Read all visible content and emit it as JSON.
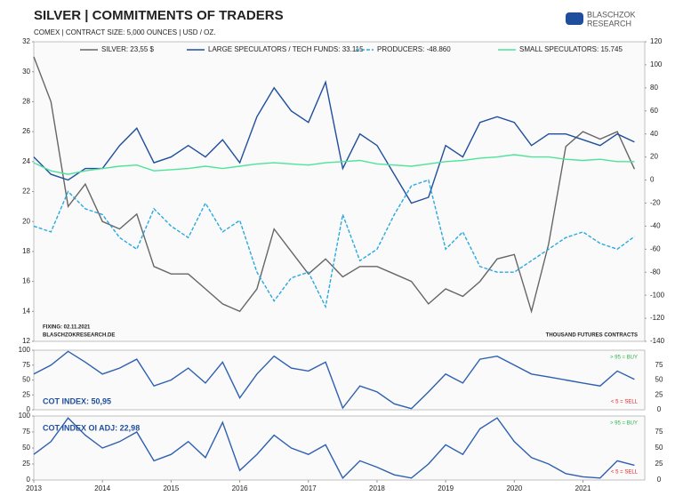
{
  "header": {
    "title": "SILVER | COMMITMENTS OF TRADERS",
    "subtitle": "COMEX | CONTRACT SIZE: 5,000 OUNCES | USD / OZ.",
    "logo": "BLASCHZOK",
    "logo_sub": "RESEARCH"
  },
  "chart_data": [
    {
      "type": "line",
      "x": [
        2013,
        2013.25,
        2013.5,
        2013.75,
        2014,
        2014.25,
        2014.5,
        2014.75,
        2015,
        2015.25,
        2015.5,
        2015.75,
        2016,
        2016.25,
        2016.5,
        2016.75,
        2017,
        2017.25,
        2017.5,
        2017.75,
        2018,
        2018.25,
        2018.5,
        2018.75,
        2019,
        2019.25,
        2019.5,
        2019.75,
        2020,
        2020.25,
        2020.5,
        2020.75,
        2021,
        2021.25,
        2021.5,
        2021.75
      ],
      "xlim": [
        2013,
        2021.9
      ],
      "ylim": [
        12,
        32
      ],
      "yticks": [
        12,
        14,
        16,
        18,
        20,
        22,
        24,
        26,
        28,
        30,
        32
      ],
      "y2lim": [
        -140,
        120
      ],
      "y2ticks": [
        -140,
        -120,
        -100,
        -80,
        -60,
        -40,
        -20,
        0,
        20,
        40,
        60,
        80,
        100,
        120
      ],
      "series": [
        {
          "name": "SILVER: 23,55 $",
          "color": "#666666",
          "values": [
            31,
            28,
            21,
            22.5,
            20,
            19.5,
            20.5,
            17,
            16.5,
            16.5,
            15.5,
            14.5,
            14,
            15.5,
            19.5,
            18,
            16.5,
            17.5,
            16.3,
            17,
            17,
            16.5,
            16,
            14.5,
            15.5,
            15,
            16,
            17.5,
            17.8,
            14,
            18.5,
            25,
            26,
            25.5,
            26,
            23.5
          ]
        },
        {
          "name": "LARGE SPECULATORS / TECH FUNDS: 33.115",
          "color": "#1f4e9c",
          "axis": "y2",
          "values": [
            20,
            5,
            0,
            10,
            10,
            30,
            45,
            15,
            20,
            30,
            20,
            35,
            15,
            55,
            80,
            60,
            50,
            85,
            10,
            40,
            30,
            5,
            -20,
            -15,
            30,
            20,
            50,
            55,
            50,
            30,
            40,
            40,
            35,
            30,
            40,
            33
          ]
        },
        {
          "name": "PRODUCERS: -48.860",
          "color": "#29a9e0",
          "axis": "y2",
          "style": "dashed",
          "values": [
            -40,
            -45,
            -10,
            -25,
            -30,
            -50,
            -60,
            -25,
            -40,
            -50,
            -20,
            -45,
            -35,
            -80,
            -105,
            -85,
            -80,
            -110,
            -30,
            -70,
            -60,
            -30,
            -5,
            0,
            -60,
            -45,
            -75,
            -80,
            -80,
            -70,
            -60,
            -50,
            -45,
            -55,
            -60,
            -49
          ]
        },
        {
          "name": "SMALL SPECULATORS: 15.745",
          "color": "#4ee39a",
          "axis": "y2",
          "values": [
            15,
            8,
            5,
            8,
            10,
            12,
            13,
            8,
            9,
            10,
            12,
            10,
            12,
            14,
            15,
            14,
            13,
            15,
            16,
            17,
            14,
            13,
            12,
            14,
            16,
            17,
            19,
            20,
            22,
            20,
            20,
            18,
            17,
            18,
            16,
            16
          ]
        }
      ],
      "annotations": [
        "FIXING: 02.11.2021",
        "BLASCHZOKRESEARCH.DE",
        "THOUSAND FUTURES CONTRACTS"
      ]
    },
    {
      "type": "line",
      "x": [
        2013,
        2013.25,
        2013.5,
        2013.75,
        2014,
        2014.25,
        2014.5,
        2014.75,
        2015,
        2015.25,
        2015.5,
        2015.75,
        2016,
        2016.25,
        2016.5,
        2016.75,
        2017,
        2017.25,
        2017.5,
        2017.75,
        2018,
        2018.25,
        2018.5,
        2018.75,
        2019,
        2019.25,
        2019.5,
        2019.75,
        2020,
        2020.25,
        2020.5,
        2020.75,
        2021,
        2021.25,
        2021.5,
        2021.75
      ],
      "xlim": [
        2013,
        2021.9
      ],
      "ylim": [
        0,
        100
      ],
      "yticks": [
        0,
        25,
        50,
        75,
        100
      ],
      "title": "COT INDEX: 50,95",
      "series": [
        {
          "color": "#2e5fb0",
          "values": [
            60,
            75,
            98,
            80,
            60,
            70,
            85,
            40,
            50,
            70,
            45,
            80,
            20,
            60,
            90,
            70,
            65,
            80,
            3,
            40,
            30,
            10,
            2,
            30,
            60,
            45,
            85,
            90,
            75,
            60,
            55,
            50,
            45,
            40,
            65,
            51
          ]
        }
      ],
      "annotations": [
        "> 95 = BUY",
        "< 5 = SELL"
      ]
    },
    {
      "type": "line",
      "x": [
        2013,
        2013.25,
        2013.5,
        2013.75,
        2014,
        2014.25,
        2014.5,
        2014.75,
        2015,
        2015.25,
        2015.5,
        2015.75,
        2016,
        2016.25,
        2016.5,
        2016.75,
        2017,
        2017.25,
        2017.5,
        2017.75,
        2018,
        2018.25,
        2018.5,
        2018.75,
        2019,
        2019.25,
        2019.5,
        2019.75,
        2020,
        2020.25,
        2020.5,
        2020.75,
        2021,
        2021.25,
        2021.5,
        2021.75
      ],
      "xlim": [
        2013,
        2021.9
      ],
      "xticks": [
        2013,
        2014,
        2015,
        2016,
        2017,
        2018,
        2019,
        2020,
        2021
      ],
      "ylim": [
        0,
        100
      ],
      "yticks": [
        0,
        25,
        50,
        75,
        100
      ],
      "title": "COT INDEX OI ADJ: 22,98",
      "series": [
        {
          "color": "#2e5fb0",
          "values": [
            40,
            60,
            97,
            70,
            50,
            60,
            75,
            30,
            40,
            60,
            35,
            90,
            15,
            40,
            70,
            50,
            40,
            55,
            3,
            30,
            20,
            8,
            3,
            25,
            55,
            40,
            80,
            97,
            60,
            35,
            25,
            10,
            5,
            3,
            30,
            23
          ]
        }
      ],
      "annotations": [
        "> 95 = BUY",
        "< 5 = SELL"
      ]
    }
  ]
}
